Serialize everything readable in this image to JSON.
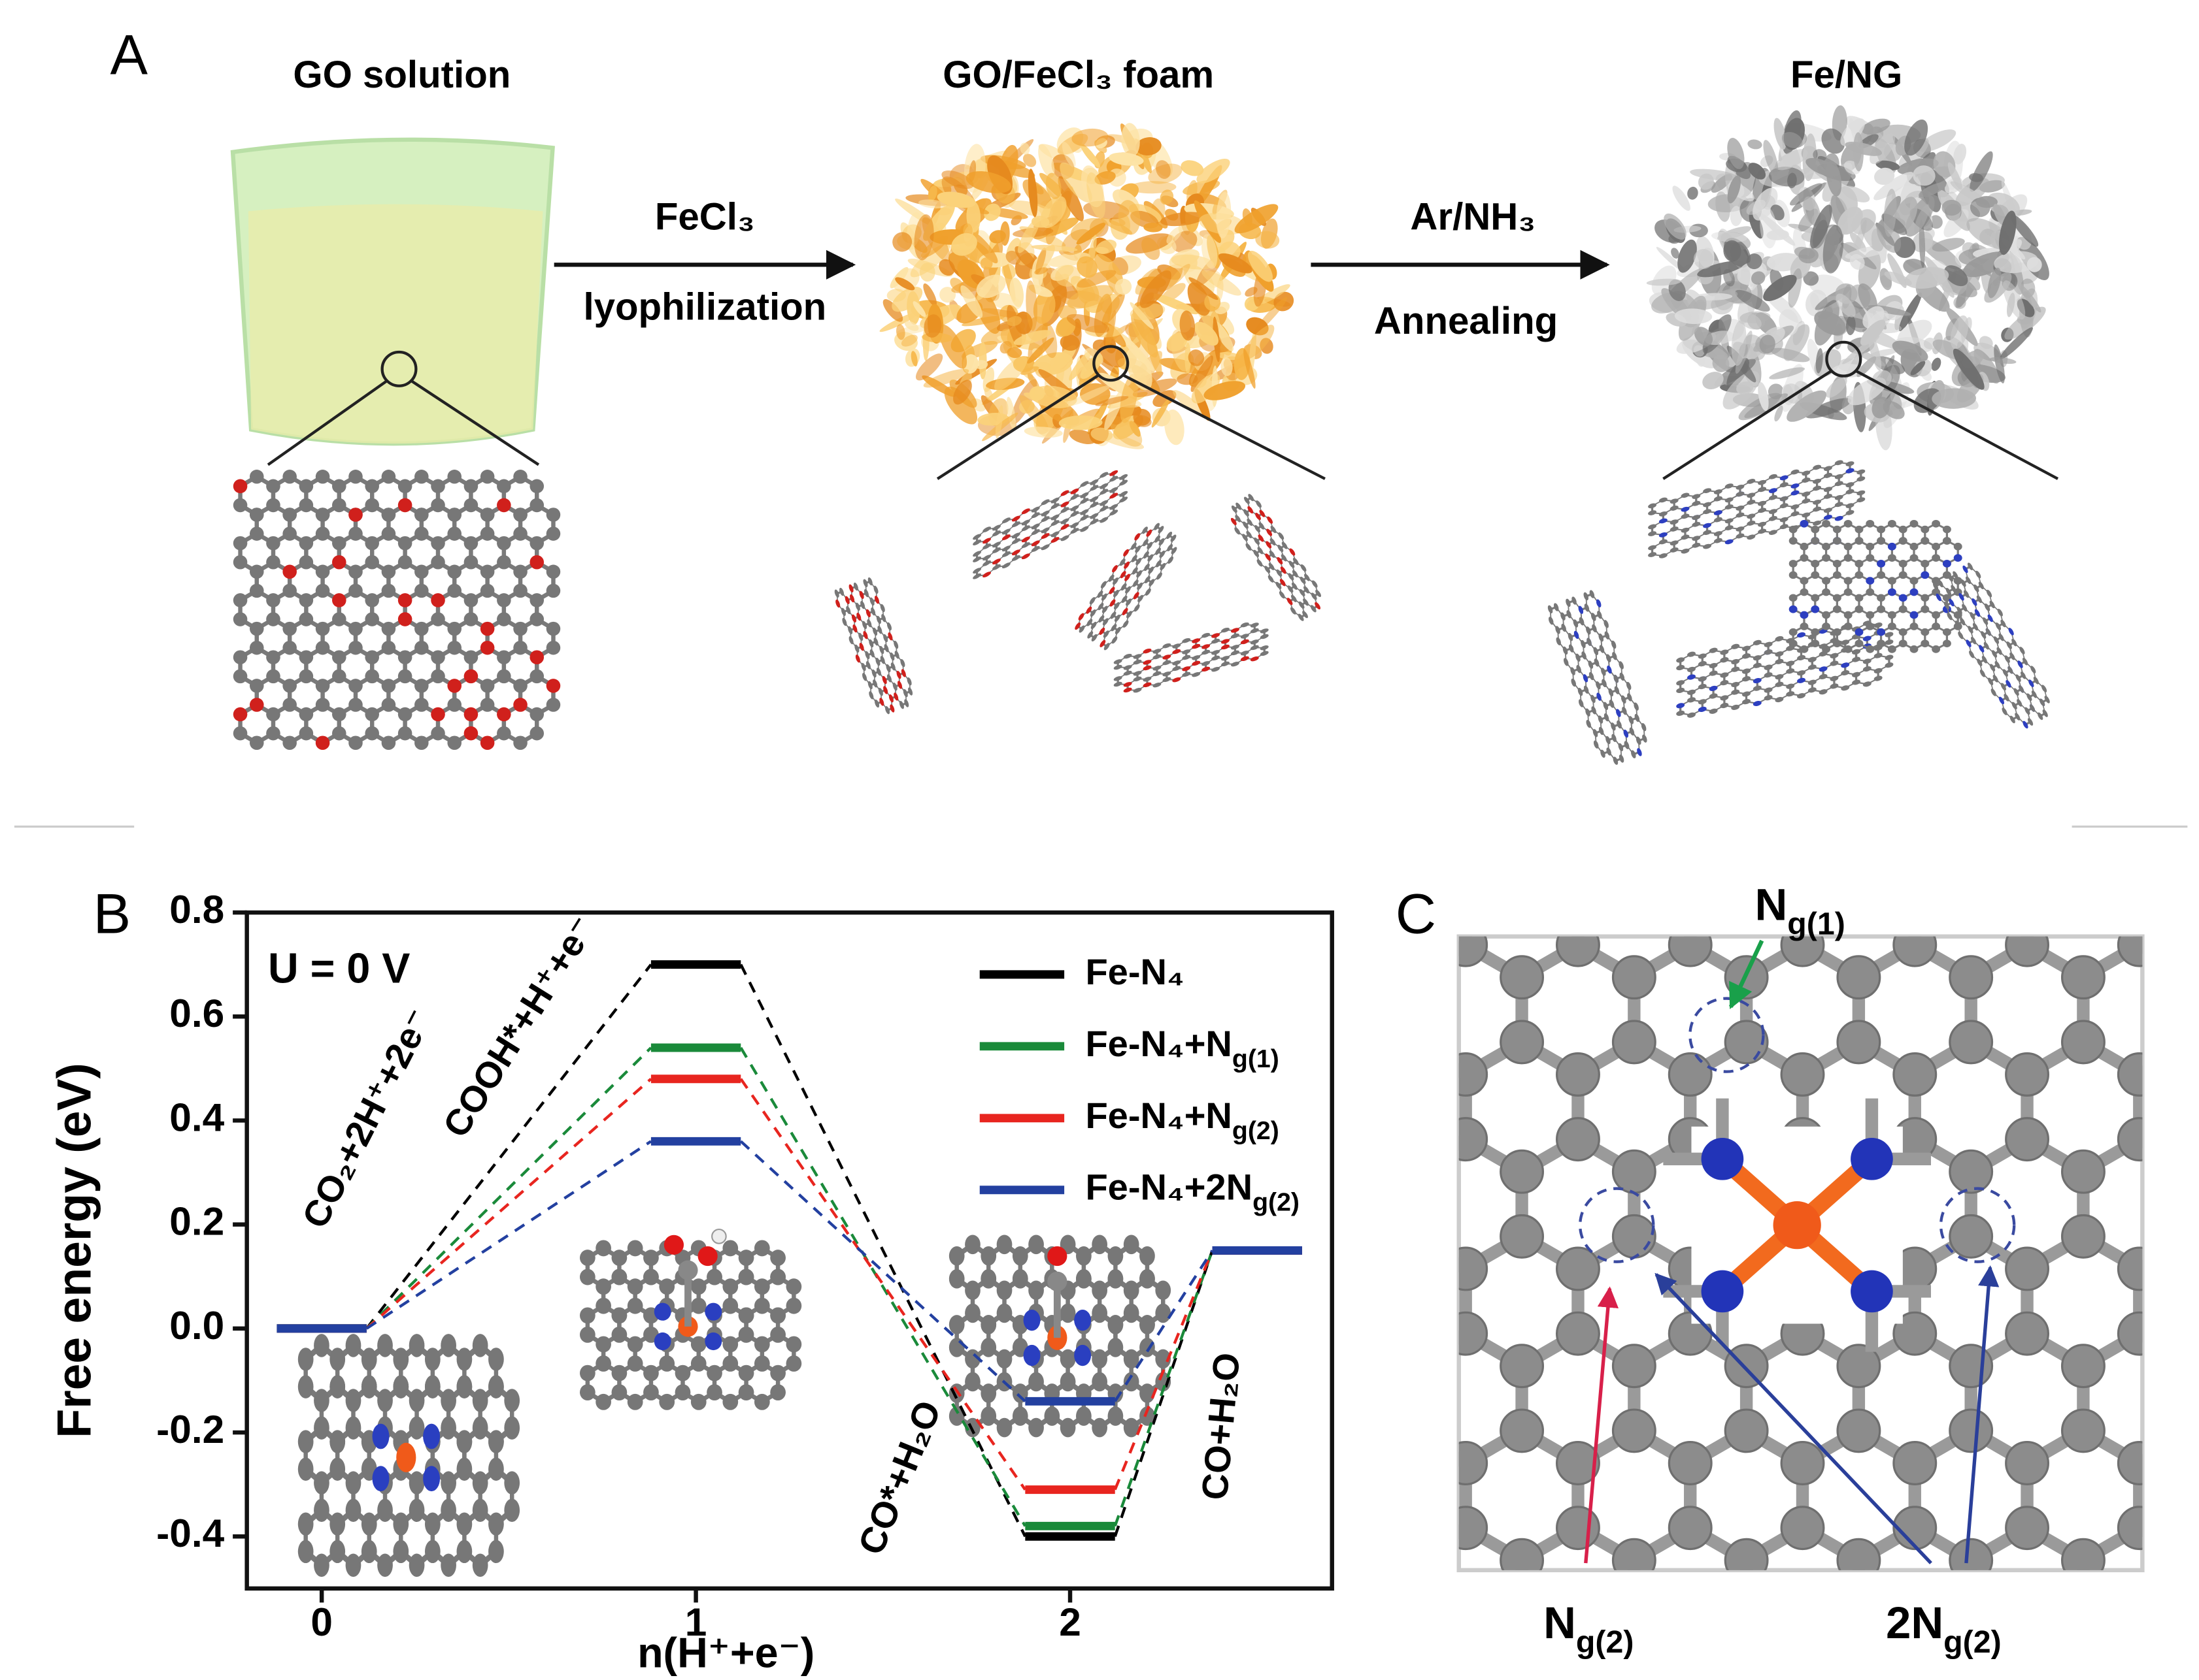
{
  "panels": [
    "A",
    "B",
    "C"
  ],
  "panel_a": {
    "steps": [
      "GO solution",
      "GO/FeCl₃ foam",
      "Fe/NG"
    ],
    "arrows": [
      [
        "FeCl₃",
        "lyophilization"
      ],
      [
        "Ar/NH₃",
        "Annealing"
      ]
    ]
  },
  "chart_data": {
    "type": "level",
    "xlabel": "n(H⁺+e⁻)",
    "ylabel": "Free energy (eV)",
    "annotations": [
      "U = 0 V",
      "CO₂+2H⁺+2e⁻",
      "COOH*+H⁺+e⁻",
      "CO*+H₂O",
      "CO+H₂O"
    ],
    "x": [
      0,
      1,
      2,
      2.5
    ],
    "xlim": [
      -0.2,
      2.7
    ],
    "xticks": [
      0,
      1,
      2
    ],
    "ylim": [
      -0.5,
      0.8
    ],
    "yticks": [
      0.8,
      0.6,
      0.4,
      0.2,
      {
        "value": 0,
        "label": "0.0"
      },
      -0.2,
      -0.4
    ],
    "legend": "upper right",
    "series": [
      {
        "name": [
          "Fe-N₄"
        ],
        "color": "#000000",
        "values": [
          0,
          0.7,
          -0.4,
          0.15
        ]
      },
      {
        "name": [
          "Fe-N₄+N",
          "g(1)"
        ],
        "color": "#1a8a3a",
        "values": [
          0,
          0.54,
          -0.38,
          0.15
        ]
      },
      {
        "name": [
          "Fe-N₄+N",
          "g(2)"
        ],
        "color": "#e8251f",
        "values": [
          0,
          0.48,
          -0.31,
          0.15
        ]
      },
      {
        "name": [
          "Fe-N₄+2N",
          "g(2)"
        ],
        "color": "#2340a0",
        "values": [
          0,
          0.36,
          -0.14,
          0.15
        ]
      }
    ]
  },
  "panel_c": {
    "labels": [
      [
        "N",
        "g(1)"
      ],
      [
        "N",
        "g(2)"
      ],
      [
        "2N",
        "g(2)"
      ]
    ]
  }
}
